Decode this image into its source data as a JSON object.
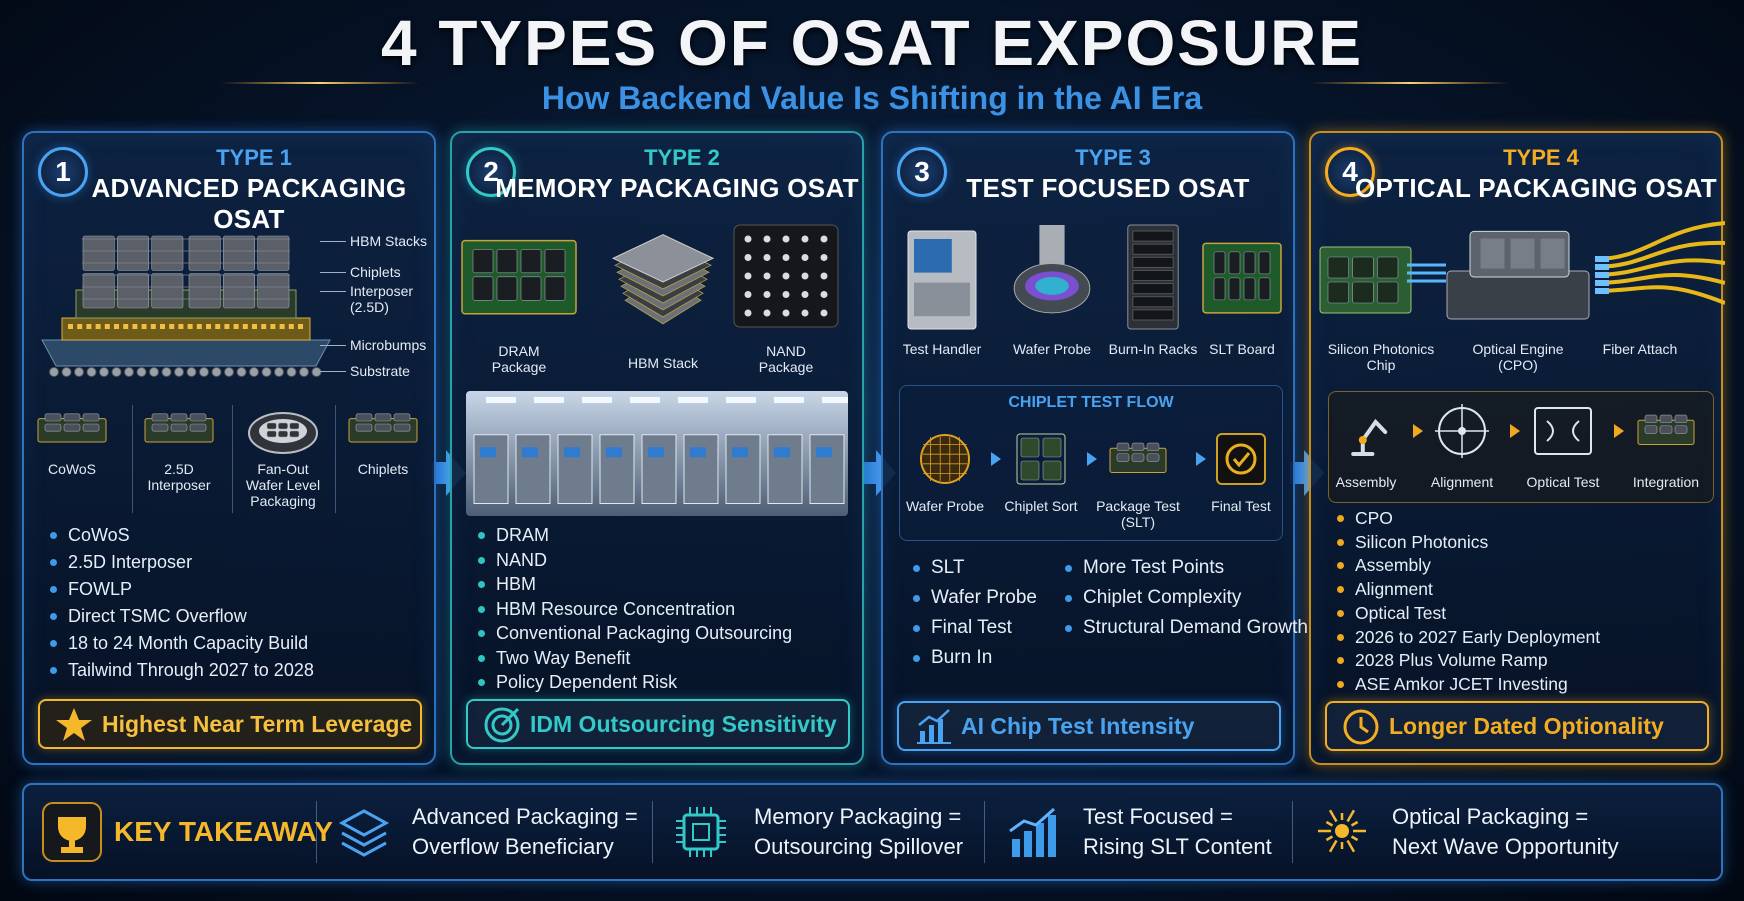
{
  "header": {
    "title": "4 TYPES OF OSAT EXPOSURE",
    "subtitle": "How Backend Value Is Shifting in the AI Era"
  },
  "panels": [
    {
      "number": "1",
      "type": "TYPE 1",
      "name": "ADVANCED PACKAGING OSAT",
      "stack_labels": [
        "HBM Stacks",
        "Chiplets",
        "Interposer (2.5D)",
        "Microbumps",
        "Substrate"
      ],
      "icons": [
        "CoWoS",
        "2.5D Interposer",
        "Fan-Out Wafer Level Packaging",
        "Chiplets"
      ],
      "bullets": [
        "CoWoS",
        "2.5D Interposer",
        "FOWLP",
        "Direct TSMC Overflow",
        "18 to 24 Month Capacity Build",
        "Tailwind Through 2027 to 2028"
      ],
      "badge": "Highest Near Term Leverage"
    },
    {
      "number": "2",
      "type": "TYPE 2",
      "name": "MEMORY PACKAGING OSAT",
      "images": [
        "DRAM Package",
        "HBM Stack",
        "NAND Package"
      ],
      "bullets": [
        "DRAM",
        "NAND",
        "HBM",
        "HBM Resource Concentration",
        "Conventional Packaging Outsourcing",
        "Two Way Benefit",
        "Policy Dependent Risk"
      ],
      "badge": "IDM Outsourcing Sensitivity"
    },
    {
      "number": "3",
      "type": "TYPE 3",
      "name": "TEST FOCUSED OSAT",
      "images": [
        "Test Handler",
        "Wafer Probe",
        "Burn-In Racks",
        "SLT Board"
      ],
      "flow": {
        "title": "CHIPLET TEST FLOW",
        "steps": [
          "Wafer Probe",
          "Chiplet Sort",
          "Package Test (SLT)",
          "Final Test"
        ]
      },
      "bullets": [
        "SLT",
        "Wafer Probe",
        "Final Test",
        "Burn In"
      ],
      "bullets_right": [
        "More Test Points",
        "Chiplet Complexity",
        "Structural Demand Growth"
      ],
      "badge": "AI Chip Test Intensity"
    },
    {
      "number": "4",
      "type": "TYPE 4",
      "name": "OPTICAL PACKAGING OSAT",
      "images": [
        "Silicon Photonics Chip",
        "Optical Engine (CPO)",
        "Fiber Attach"
      ],
      "flow": {
        "steps": [
          "Assembly",
          "Alignment",
          "Optical Test",
          "Integration"
        ]
      },
      "bullets": [
        "CPO",
        "Silicon Photonics",
        "Assembly",
        "Alignment",
        "Optical Test",
        "2026 to 2027 Early Deployment",
        "2028 Plus Volume Ramp",
        "ASE Amkor JCET Investing"
      ],
      "badge": "Longer Dated Optionality"
    }
  ],
  "takeaway": {
    "label": "KEY TAKEAWAY",
    "items": [
      [
        "Advanced Packaging =",
        "Overflow Beneficiary"
      ],
      [
        "Memory Packaging =",
        "Outsourcing Spillover"
      ],
      [
        "Test Focused =",
        "Rising SLT Content"
      ],
      [
        "Optical Packaging =",
        "Next Wave Opportunity"
      ]
    ]
  }
}
